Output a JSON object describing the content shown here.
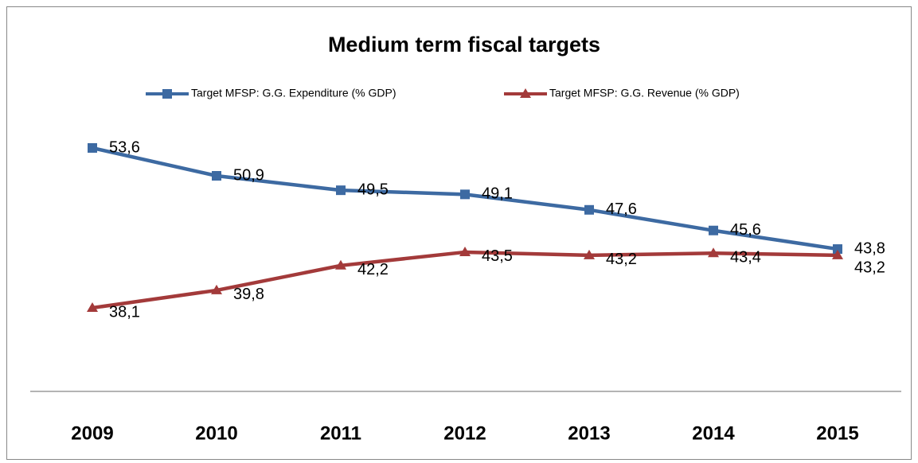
{
  "chart_data": {
    "type": "line",
    "title": "Medium term fiscal targets",
    "categories": [
      "2009",
      "2010",
      "2011",
      "2012",
      "2013",
      "2014",
      "2015"
    ],
    "series": [
      {
        "name": "Target MFSP: G.G. Expenditure (% GDP)",
        "color": "#3d6aa2",
        "marker": "square",
        "values": [
          53.6,
          50.9,
          49.5,
          49.1,
          47.6,
          45.6,
          43.8
        ],
        "value_labels": [
          "53,6",
          "50,9",
          "49,5",
          "49,1",
          "47,6",
          "45,6",
          "43,8"
        ]
      },
      {
        "name": "Target MFSP: G.G. Revenue (% GDP)",
        "color": "#a33a3a",
        "marker": "triangle",
        "values": [
          38.1,
          39.8,
          42.2,
          43.5,
          43.2,
          43.4,
          43.2
        ],
        "value_labels": [
          "38,1",
          "39,8",
          "42,2",
          "43,5",
          "43,2",
          "43,4",
          "43,2"
        ]
      }
    ],
    "ylim": [
      30,
      60
    ],
    "legend": "top"
  }
}
